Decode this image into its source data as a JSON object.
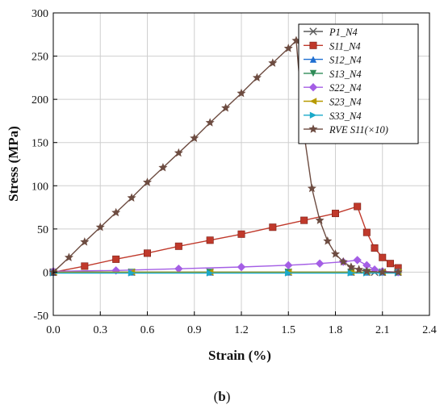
{
  "caption": {
    "open": "(",
    "letter": "b",
    "close": ")"
  },
  "chart_data": {
    "type": "line",
    "xlabel": "Strain (%)",
    "ylabel": "Stress (MPa)",
    "xlim": [
      0.0,
      2.4
    ],
    "ylim": [
      -50,
      300
    ],
    "xticks": [
      0.0,
      0.3,
      0.6,
      0.9,
      1.2,
      1.5,
      1.8,
      2.1,
      2.4
    ],
    "xtick_labels": [
      "0.0",
      "0.3",
      "0.6",
      "0.9",
      "1.2",
      "1.5",
      "1.8",
      "2.1",
      "2.4"
    ],
    "yticks": [
      -50,
      0,
      50,
      100,
      150,
      200,
      250,
      300
    ],
    "ytick_labels": [
      "-50",
      "0",
      "50",
      "100",
      "150",
      "200",
      "250",
      "300"
    ],
    "grid": true,
    "legend_position": "top-right",
    "series": [
      {
        "name": "P1_N4",
        "color": "#5a5a5a",
        "marker": "x",
        "x": [
          0.0,
          0.5,
          1.0,
          1.5,
          1.9,
          2.0,
          2.05,
          2.1,
          2.2
        ],
        "y": [
          0,
          0,
          0,
          0,
          0,
          0,
          0,
          0,
          0
        ]
      },
      {
        "name": "S11_N4",
        "color": "#c0392b",
        "marker": "square",
        "x": [
          0.0,
          0.2,
          0.4,
          0.6,
          0.8,
          1.0,
          1.2,
          1.4,
          1.6,
          1.8,
          1.94,
          2.0,
          2.05,
          2.1,
          2.15,
          2.2
        ],
        "y": [
          0,
          7,
          15,
          22,
          30,
          37,
          44,
          52,
          60,
          68,
          76,
          46,
          28,
          17,
          10,
          5
        ]
      },
      {
        "name": "S12_N4",
        "color": "#1f6fd1",
        "marker": "triangle-up",
        "x": [
          0.0,
          0.5,
          1.0,
          1.5,
          1.9,
          2.0,
          2.1,
          2.2
        ],
        "y": [
          0,
          0,
          0,
          0,
          0,
          0,
          0,
          0
        ]
      },
      {
        "name": "S13_N4",
        "color": "#2e8b57",
        "marker": "triangle-down",
        "x": [
          0.0,
          0.5,
          1.0,
          1.5,
          1.9,
          2.0,
          2.1,
          2.2
        ],
        "y": [
          0,
          0,
          0,
          0,
          0,
          0,
          0,
          0
        ]
      },
      {
        "name": "S22_N4",
        "color": "#a45ee5",
        "marker": "diamond",
        "x": [
          0.0,
          0.4,
          0.8,
          1.2,
          1.5,
          1.7,
          1.85,
          1.94,
          2.0,
          2.05,
          2.1,
          2.2
        ],
        "y": [
          1,
          2,
          4,
          6,
          8,
          10,
          12,
          14,
          8,
          3,
          1,
          0
        ]
      },
      {
        "name": "S23_N4",
        "color": "#b79a00",
        "marker": "triangle-left",
        "x": [
          0.0,
          0.5,
          1.0,
          1.5,
          1.9,
          2.0,
          2.1,
          2.2
        ],
        "y": [
          0,
          0,
          0,
          0,
          0,
          0,
          0,
          0
        ]
      },
      {
        "name": "S33_N4",
        "color": "#1aa9c9",
        "marker": "triangle-right",
        "x": [
          0.0,
          0.5,
          1.0,
          1.5,
          1.9,
          2.0,
          2.1,
          2.2
        ],
        "y": [
          -1,
          -1,
          -1,
          -1,
          -1,
          -1,
          -1,
          -1
        ]
      },
      {
        "name": "RVE S11(×10)",
        "color": "#6d4c41",
        "marker": "star",
        "x": [
          0.0,
          0.1,
          0.2,
          0.3,
          0.4,
          0.5,
          0.6,
          0.7,
          0.8,
          0.9,
          1.0,
          1.1,
          1.2,
          1.3,
          1.4,
          1.5,
          1.55,
          1.6,
          1.65,
          1.7,
          1.75,
          1.8,
          1.85,
          1.9,
          1.95,
          2.0,
          2.1,
          2.2
        ],
        "y": [
          0,
          17,
          35,
          52,
          69,
          86,
          104,
          121,
          138,
          155,
          173,
          190,
          207,
          225,
          242,
          259,
          268,
          160,
          97,
          60,
          36,
          21,
          12,
          6,
          3,
          1,
          0,
          0
        ]
      }
    ]
  }
}
